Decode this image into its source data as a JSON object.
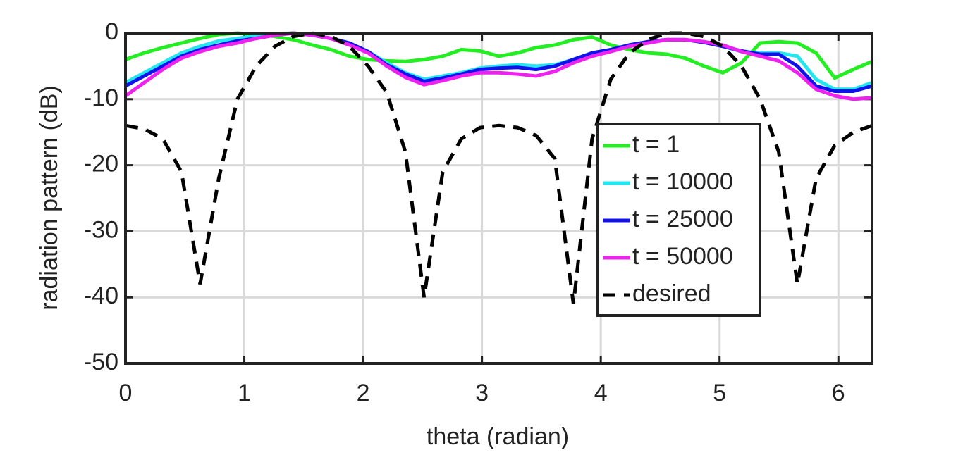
{
  "chart_data": {
    "type": "line",
    "xlabel": "theta (radian)",
    "ylabel": "radiation pattern (dB)",
    "x": [
      0,
      0.157,
      0.314,
      0.471,
      0.628,
      0.785,
      0.942,
      1.1,
      1.257,
      1.414,
      1.571,
      1.728,
      1.885,
      2.042,
      2.199,
      2.356,
      2.513,
      2.67,
      2.827,
      2.985,
      3.142,
      3.299,
      3.456,
      3.613,
      3.77,
      3.927,
      4.084,
      4.241,
      4.398,
      4.555,
      4.712,
      4.869,
      5.027,
      5.184,
      5.341,
      5.498,
      5.655,
      5.812,
      5.969,
      6.126,
      6.283
    ],
    "series": [
      {
        "name": "t = 1",
        "color": "#22ee22",
        "dash": false,
        "values": [
          -4,
          -3,
          -2.2,
          -1.5,
          -0.8,
          -0.2,
          0,
          -0.2,
          -0.5,
          -1,
          -1.8,
          -2.5,
          -3.5,
          -4,
          -4.2,
          -4.3,
          -4,
          -3.5,
          -2.5,
          -2.7,
          -3.5,
          -3,
          -2.2,
          -1.8,
          -1,
          -0.6,
          -1.8,
          -2.5,
          -3,
          -3.2,
          -3.8,
          -5,
          -6,
          -4.5,
          -1.5,
          -1.3,
          -1.5,
          -3,
          -6.8,
          -5.5,
          -4.3
        ]
      },
      {
        "name": "t = 10000",
        "color": "#22e6f0",
        "dash": false,
        "values": [
          -7.5,
          -6,
          -4.5,
          -3,
          -2,
          -1.2,
          -0.8,
          -0.4,
          -0.1,
          0,
          -0.3,
          -0.8,
          -1.5,
          -2.8,
          -4.5,
          -6,
          -7,
          -6.5,
          -6,
          -5.3,
          -5,
          -4.8,
          -5,
          -4.8,
          -4,
          -3,
          -2.5,
          -2,
          -1.4,
          -1,
          -1,
          -1.3,
          -2,
          -2.8,
          -3,
          -3,
          -3.5,
          -7,
          -8.5,
          -8.5,
          -7.5
        ]
      },
      {
        "name": "t = 25000",
        "color": "#1111ee",
        "dash": false,
        "values": [
          -8,
          -6.5,
          -5,
          -3.5,
          -2.5,
          -1.8,
          -1.2,
          -0.8,
          -0.3,
          0,
          -0.3,
          -0.8,
          -1.5,
          -2.8,
          -4.8,
          -6.2,
          -7.3,
          -6.8,
          -6.2,
          -5.5,
          -5.3,
          -5.2,
          -5.5,
          -5,
          -4,
          -3,
          -2.5,
          -1.8,
          -1.3,
          -1,
          -1,
          -1.4,
          -2,
          -2.7,
          -3.2,
          -3.2,
          -5,
          -8,
          -8.8,
          -8.8,
          -8
        ]
      },
      {
        "name": "t = 50000",
        "color": "#ee22ee",
        "dash": false,
        "values": [
          -9.5,
          -7.5,
          -5.5,
          -3.8,
          -2.8,
          -2,
          -1.5,
          -0.8,
          -0.3,
          0,
          -0.3,
          -0.8,
          -1.8,
          -3,
          -5,
          -6.7,
          -7.8,
          -7.2,
          -6.5,
          -6,
          -6,
          -6.2,
          -6.5,
          -5.8,
          -4.5,
          -3.5,
          -2.8,
          -2,
          -1.5,
          -1,
          -1,
          -1.3,
          -1.8,
          -2.8,
          -3.5,
          -4.2,
          -6,
          -8.5,
          -9.5,
          -10,
          -9.8
        ]
      },
      {
        "name": "desired",
        "color": "#000000",
        "dash": true,
        "values": [
          -14,
          -14.5,
          -16,
          -21,
          -38,
          -22,
          -10,
          -5,
          -2,
          -0.5,
          0,
          -0.5,
          -2,
          -5,
          -9,
          -18,
          -40,
          -21,
          -16,
          -14.3,
          -14,
          -14.3,
          -15.5,
          -19,
          -41,
          -16,
          -7,
          -3,
          -1,
          0,
          0,
          -0.5,
          -2,
          -5,
          -10,
          -18,
          -38,
          -22,
          -17,
          -15,
          -14
        ]
      }
    ],
    "xlim": [
      0,
      6.2832
    ],
    "xticks": [
      0,
      1,
      2,
      3,
      4,
      5,
      6
    ],
    "ylim": [
      -50,
      0
    ],
    "yticks": [
      -50,
      -40,
      -30,
      -20,
      -10,
      0
    ],
    "grid": true,
    "legend_loc": "east"
  }
}
